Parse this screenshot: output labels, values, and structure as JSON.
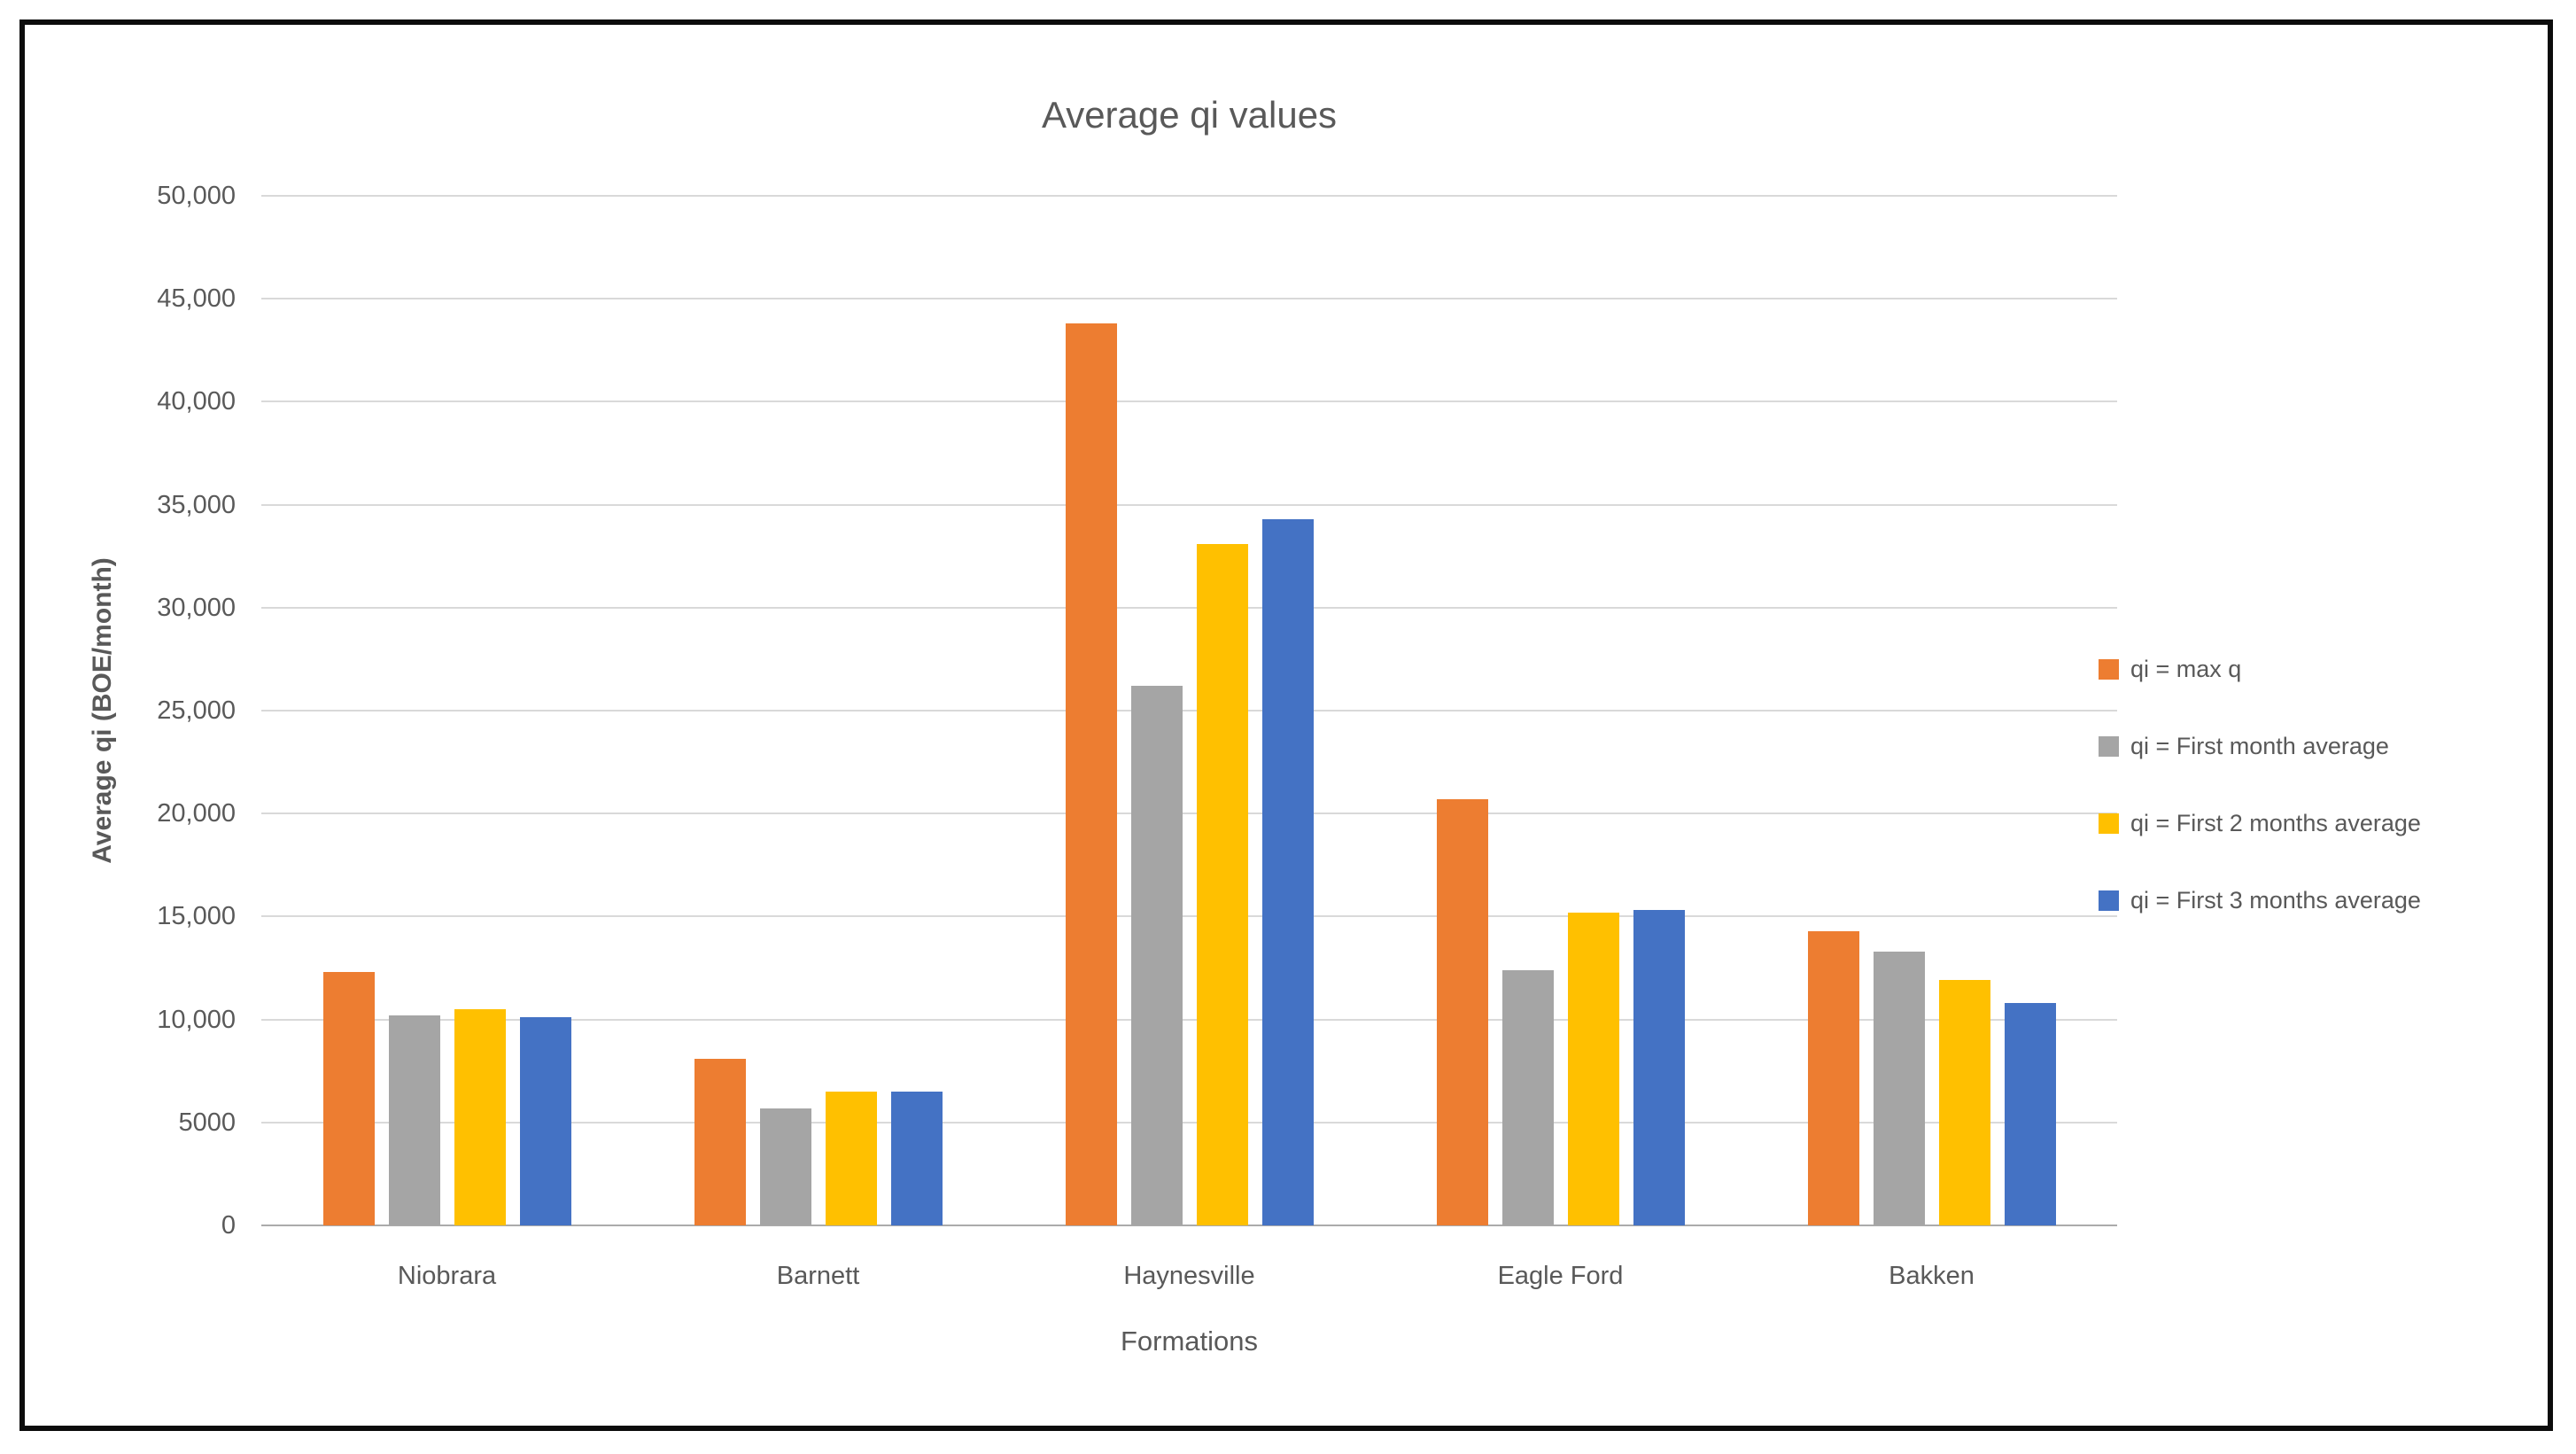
{
  "chart_data": {
    "type": "bar",
    "title": "Average qi values",
    "xlabel": "Formations",
    "ylabel": "Average qi (BOE/month)",
    "categories": [
      "Niobrara",
      "Barnett",
      "Haynesville",
      "Eagle Ford",
      "Bakken"
    ],
    "series": [
      {
        "name": "qi = max q",
        "color": "#ED7D31",
        "values": [
          12300,
          8100,
          43800,
          20700,
          14300
        ]
      },
      {
        "name": "qi = First month average",
        "color": "#A5A5A5",
        "values": [
          10200,
          5700,
          26200,
          12400,
          13300
        ]
      },
      {
        "name": "qi = First 2 months average",
        "color": "#FFC000",
        "values": [
          10500,
          6500,
          33100,
          15200,
          11900
        ]
      },
      {
        "name": "qi = First 3 months average",
        "color": "#4472C4",
        "values": [
          10100,
          6500,
          34300,
          15300,
          10800
        ]
      }
    ],
    "ylim": [
      0,
      50000
    ],
    "ytick_interval": 5000,
    "ytick_labels": [
      "0",
      "5000",
      "10,000",
      "15,000",
      "20,000",
      "25,000",
      "30,000",
      "35,000",
      "40,000",
      "45,000",
      "50,000"
    ],
    "grid": true,
    "legend_position": "right"
  },
  "colors": {
    "gridline": "#D9D9D9",
    "axis_line": "#ABABAB",
    "text": "#595959",
    "frame_border": "#0C0C0C",
    "background": "#FFFFFF"
  }
}
